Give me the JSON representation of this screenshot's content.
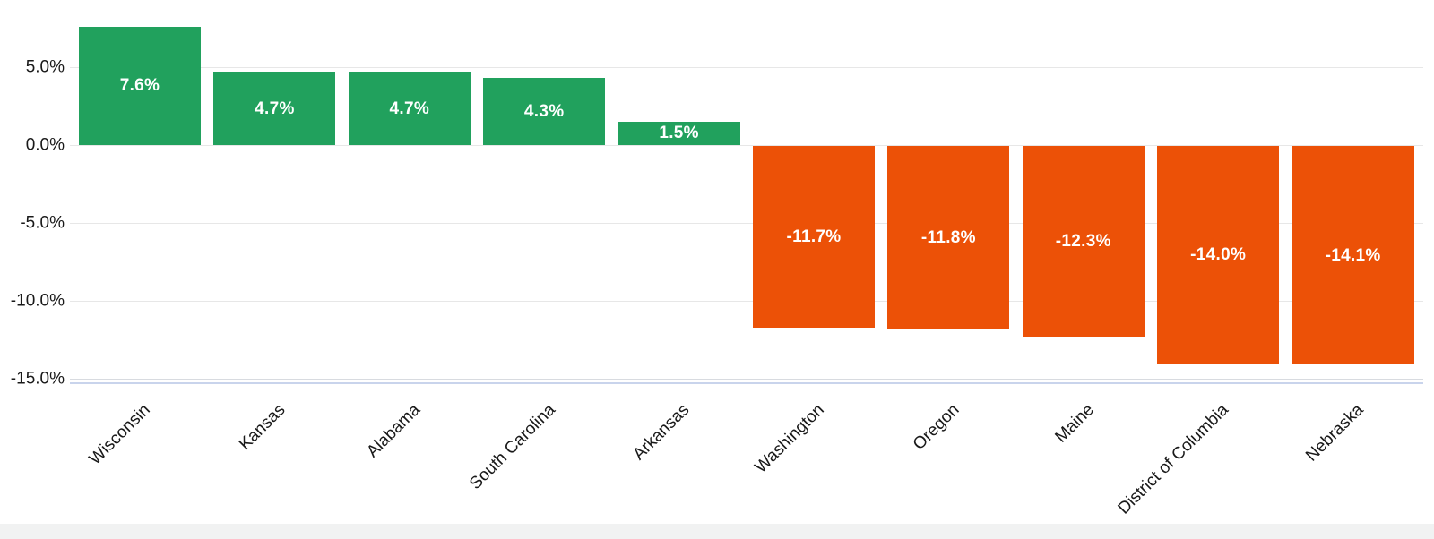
{
  "chart_data": {
    "type": "bar",
    "title": "",
    "xlabel": "",
    "ylabel": "",
    "categories": [
      "Wisconsin",
      "Kansas",
      "Alabama",
      "South Carolina",
      "Arkansas",
      "Washington",
      "Oregon",
      "Maine",
      "District of Columbia",
      "Nebraska"
    ],
    "values": [
      7.6,
      4.7,
      4.7,
      4.3,
      1.5,
      -11.7,
      -11.8,
      -12.3,
      -14.0,
      -14.1
    ],
    "bar_labels": [
      "7.6%",
      "4.7%",
      "4.7%",
      "4.3%",
      "1.5%",
      "-11.7%",
      "-11.8%",
      "-12.3%",
      "-14.0%",
      "-14.1%"
    ],
    "y_ticks": [
      {
        "value": 5,
        "label": "5.0%"
      },
      {
        "value": 0,
        "label": "0.0%"
      },
      {
        "value": -5,
        "label": "-5.0%"
      },
      {
        "value": -10,
        "label": "-10.0%"
      },
      {
        "value": -15,
        "label": "-15.0%"
      }
    ],
    "ylim": [
      -15,
      9
    ],
    "grid": true,
    "legend_position": "none",
    "x_label_rotation_deg": -45,
    "colors": {
      "positive_bar": "#21a15d",
      "negative_bar": "#ec5107",
      "gridline": "#e7e7e7",
      "baseline_blue": "#c9d4ec",
      "axis_text": "#191919",
      "bar_label_text": "#ffffff"
    }
  }
}
